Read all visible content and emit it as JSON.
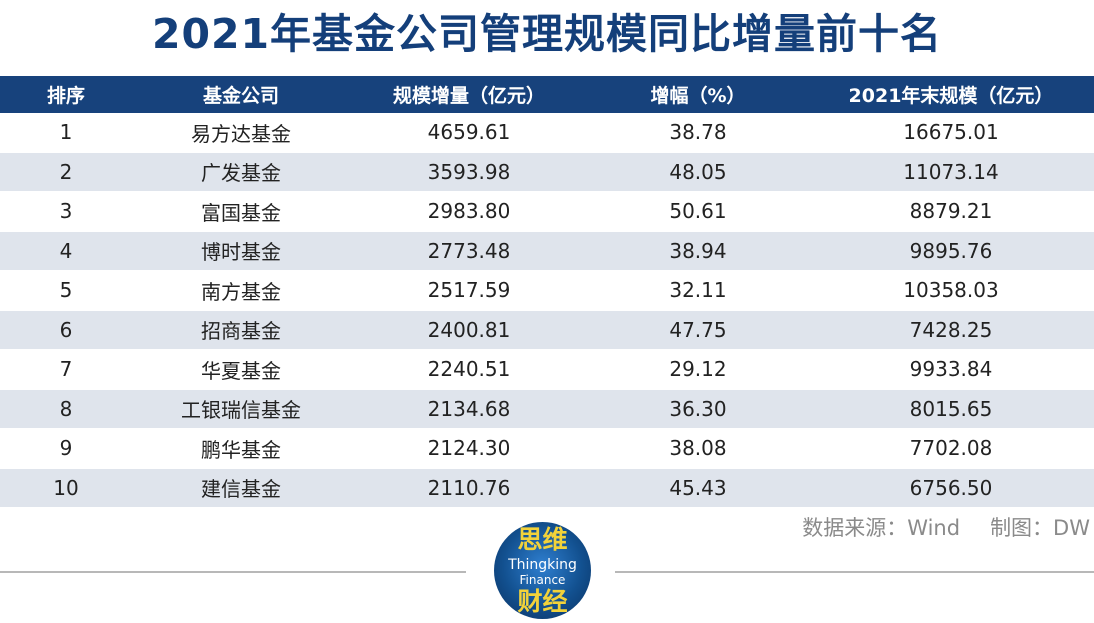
{
  "title": "2021年基金公司管理规模同比增量前十名",
  "table": {
    "headers": [
      "排序",
      "基金公司",
      "规模增量（亿元）",
      "增幅（%）",
      "2021年末规模（亿元）"
    ],
    "rows": [
      [
        "1",
        "易方达基金",
        "4659.61",
        "38.78",
        "16675.01"
      ],
      [
        "2",
        "广发基金",
        "3593.98",
        "48.05",
        "11073.14"
      ],
      [
        "3",
        "富国基金",
        "2983.80",
        "50.61",
        "8879.21"
      ],
      [
        "4",
        "博时基金",
        "2773.48",
        "38.94",
        "9895.76"
      ],
      [
        "5",
        "南方基金",
        "2517.59",
        "32.11",
        "10358.03"
      ],
      [
        "6",
        "招商基金",
        "2400.81",
        "47.75",
        "7428.25"
      ],
      [
        "7",
        "华夏基金",
        "2240.51",
        "29.12",
        "9933.84"
      ],
      [
        "8",
        "工银瑞信基金",
        "2134.68",
        "36.30",
        "8015.65"
      ],
      [
        "9",
        "鹏华基金",
        "2124.30",
        "38.08",
        "7702.08"
      ],
      [
        "10",
        "建信基金",
        "2110.76",
        "45.43",
        "6756.50"
      ]
    ]
  },
  "footer": {
    "source": "数据来源：Wind",
    "author": "制图：DW"
  },
  "logo": {
    "top": "思维",
    "line1": "Thingking",
    "line2": "Finance",
    "bottom": "财经"
  },
  "colors": {
    "header_bg": "#17427c",
    "title": "#143f7a",
    "stripe": "#dfe4ec"
  }
}
